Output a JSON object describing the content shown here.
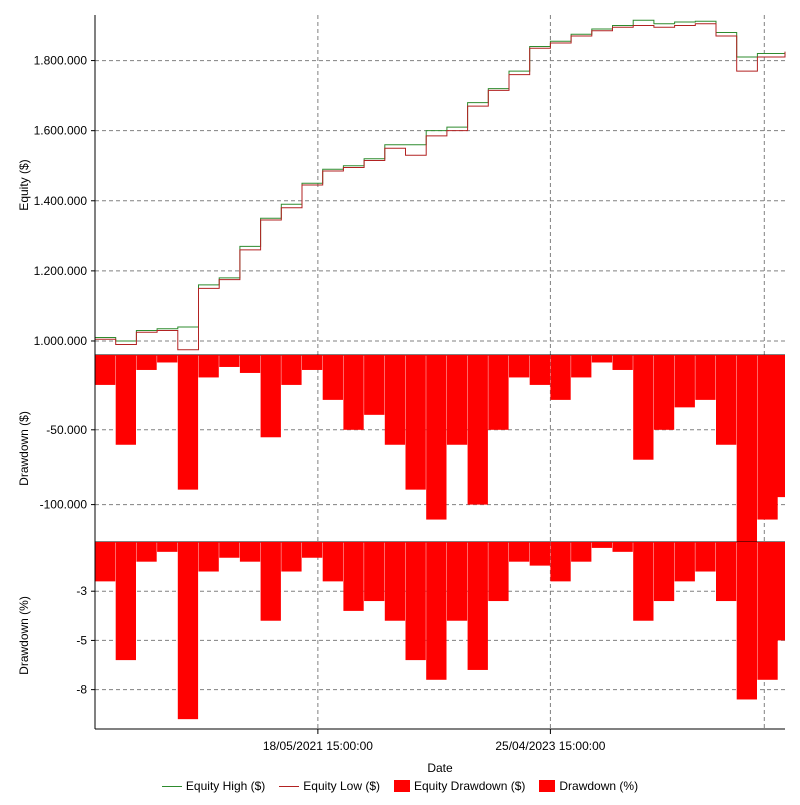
{
  "chart_data": {
    "type": "line",
    "xlabel": "Date",
    "x_ticks": [
      "18/05/2021 15:00:00",
      "25/04/2023 15:00:00"
    ],
    "legend_position": "bottom",
    "grid": true,
    "colors": {
      "equity_high": "#2e8b2e",
      "equity_low": "#b22222",
      "drawdown_fill": "#ff0000",
      "grid": "#808080"
    },
    "panels": [
      {
        "name": "equity",
        "ylabel": "Equity ($)",
        "ylim": [
          960000,
          1930000
        ],
        "ticks": [
          1000000,
          1200000,
          1400000,
          1600000,
          1800000
        ],
        "tick_labels": [
          "1.000.000",
          "1.200.000",
          "1.400.000",
          "1.600.000",
          "1.800.000"
        ]
      },
      {
        "name": "equity_drawdown",
        "ylabel": "Drawdown ($)",
        "ylim": [
          -125000,
          0
        ],
        "ticks": [
          -50000,
          -100000
        ],
        "tick_labels": [
          "-50.000",
          "-100.000"
        ]
      },
      {
        "name": "drawdown_pct",
        "ylabel": "Drawdown (%)",
        "ylim": [
          -9.5,
          0
        ],
        "ticks": [
          -2.5,
          -5,
          -7.5
        ],
        "tick_labels": [
          "-3",
          "-5",
          "-8"
        ]
      }
    ],
    "x": [
      0,
      0.03,
      0.06,
      0.09,
      0.12,
      0.15,
      0.18,
      0.21,
      0.24,
      0.27,
      0.3,
      0.33,
      0.36,
      0.39,
      0.42,
      0.45,
      0.48,
      0.51,
      0.54,
      0.57,
      0.6,
      0.63,
      0.66,
      0.69,
      0.72,
      0.75,
      0.78,
      0.81,
      0.84,
      0.87,
      0.9,
      0.93,
      0.96,
      1.0
    ],
    "series": [
      {
        "name": "Equity High ($)",
        "panel": "equity",
        "values": [
          1010000,
          1000000,
          1030000,
          1035000,
          1040000,
          1160000,
          1180000,
          1270000,
          1350000,
          1390000,
          1450000,
          1490000,
          1500000,
          1520000,
          1560000,
          1560000,
          1600000,
          1610000,
          1680000,
          1720000,
          1770000,
          1840000,
          1855000,
          1875000,
          1890000,
          1900000,
          1915000,
          1905000,
          1910000,
          1912000,
          1880000,
          1810000,
          1820000,
          1825000
        ]
      },
      {
        "name": "Equity Low ($)",
        "panel": "equity",
        "values": [
          1005000,
          990000,
          1025000,
          1030000,
          975000,
          1150000,
          1175000,
          1260000,
          1345000,
          1380000,
          1445000,
          1485000,
          1495000,
          1515000,
          1550000,
          1530000,
          1585000,
          1600000,
          1670000,
          1715000,
          1760000,
          1835000,
          1850000,
          1870000,
          1885000,
          1895000,
          1900000,
          1895000,
          1900000,
          1905000,
          1870000,
          1770000,
          1810000,
          1825000
        ]
      },
      {
        "name": "Equity Drawdown ($)",
        "panel": "equity_drawdown",
        "values": [
          -20000,
          -60000,
          -10000,
          -5000,
          -90000,
          -15000,
          -8000,
          -12000,
          -55000,
          -20000,
          -10000,
          -30000,
          -50000,
          -40000,
          -60000,
          -90000,
          -110000,
          -60000,
          -100000,
          -50000,
          -15000,
          -20000,
          -30000,
          -15000,
          -5000,
          -10000,
          -70000,
          -50000,
          -35000,
          -30000,
          -60000,
          -125000,
          -110000,
          -95000
        ]
      },
      {
        "name": "Drawdown (%)",
        "panel": "drawdown_pct",
        "values": [
          -2,
          -6,
          -1,
          -0.5,
          -9,
          -1.5,
          -0.8,
          -1,
          -4,
          -1.5,
          -0.8,
          -2,
          -3.5,
          -3,
          -4,
          -6,
          -7,
          -4,
          -6.5,
          -3,
          -1,
          -1.2,
          -2,
          -1,
          -0.3,
          -0.5,
          -4,
          -3,
          -2,
          -1.5,
          -3,
          -8,
          -7,
          -5
        ]
      }
    ],
    "legend": [
      "Equity High ($)",
      "Equity Low ($)",
      "Equity Drawdown ($)",
      "Drawdown (%)"
    ]
  }
}
